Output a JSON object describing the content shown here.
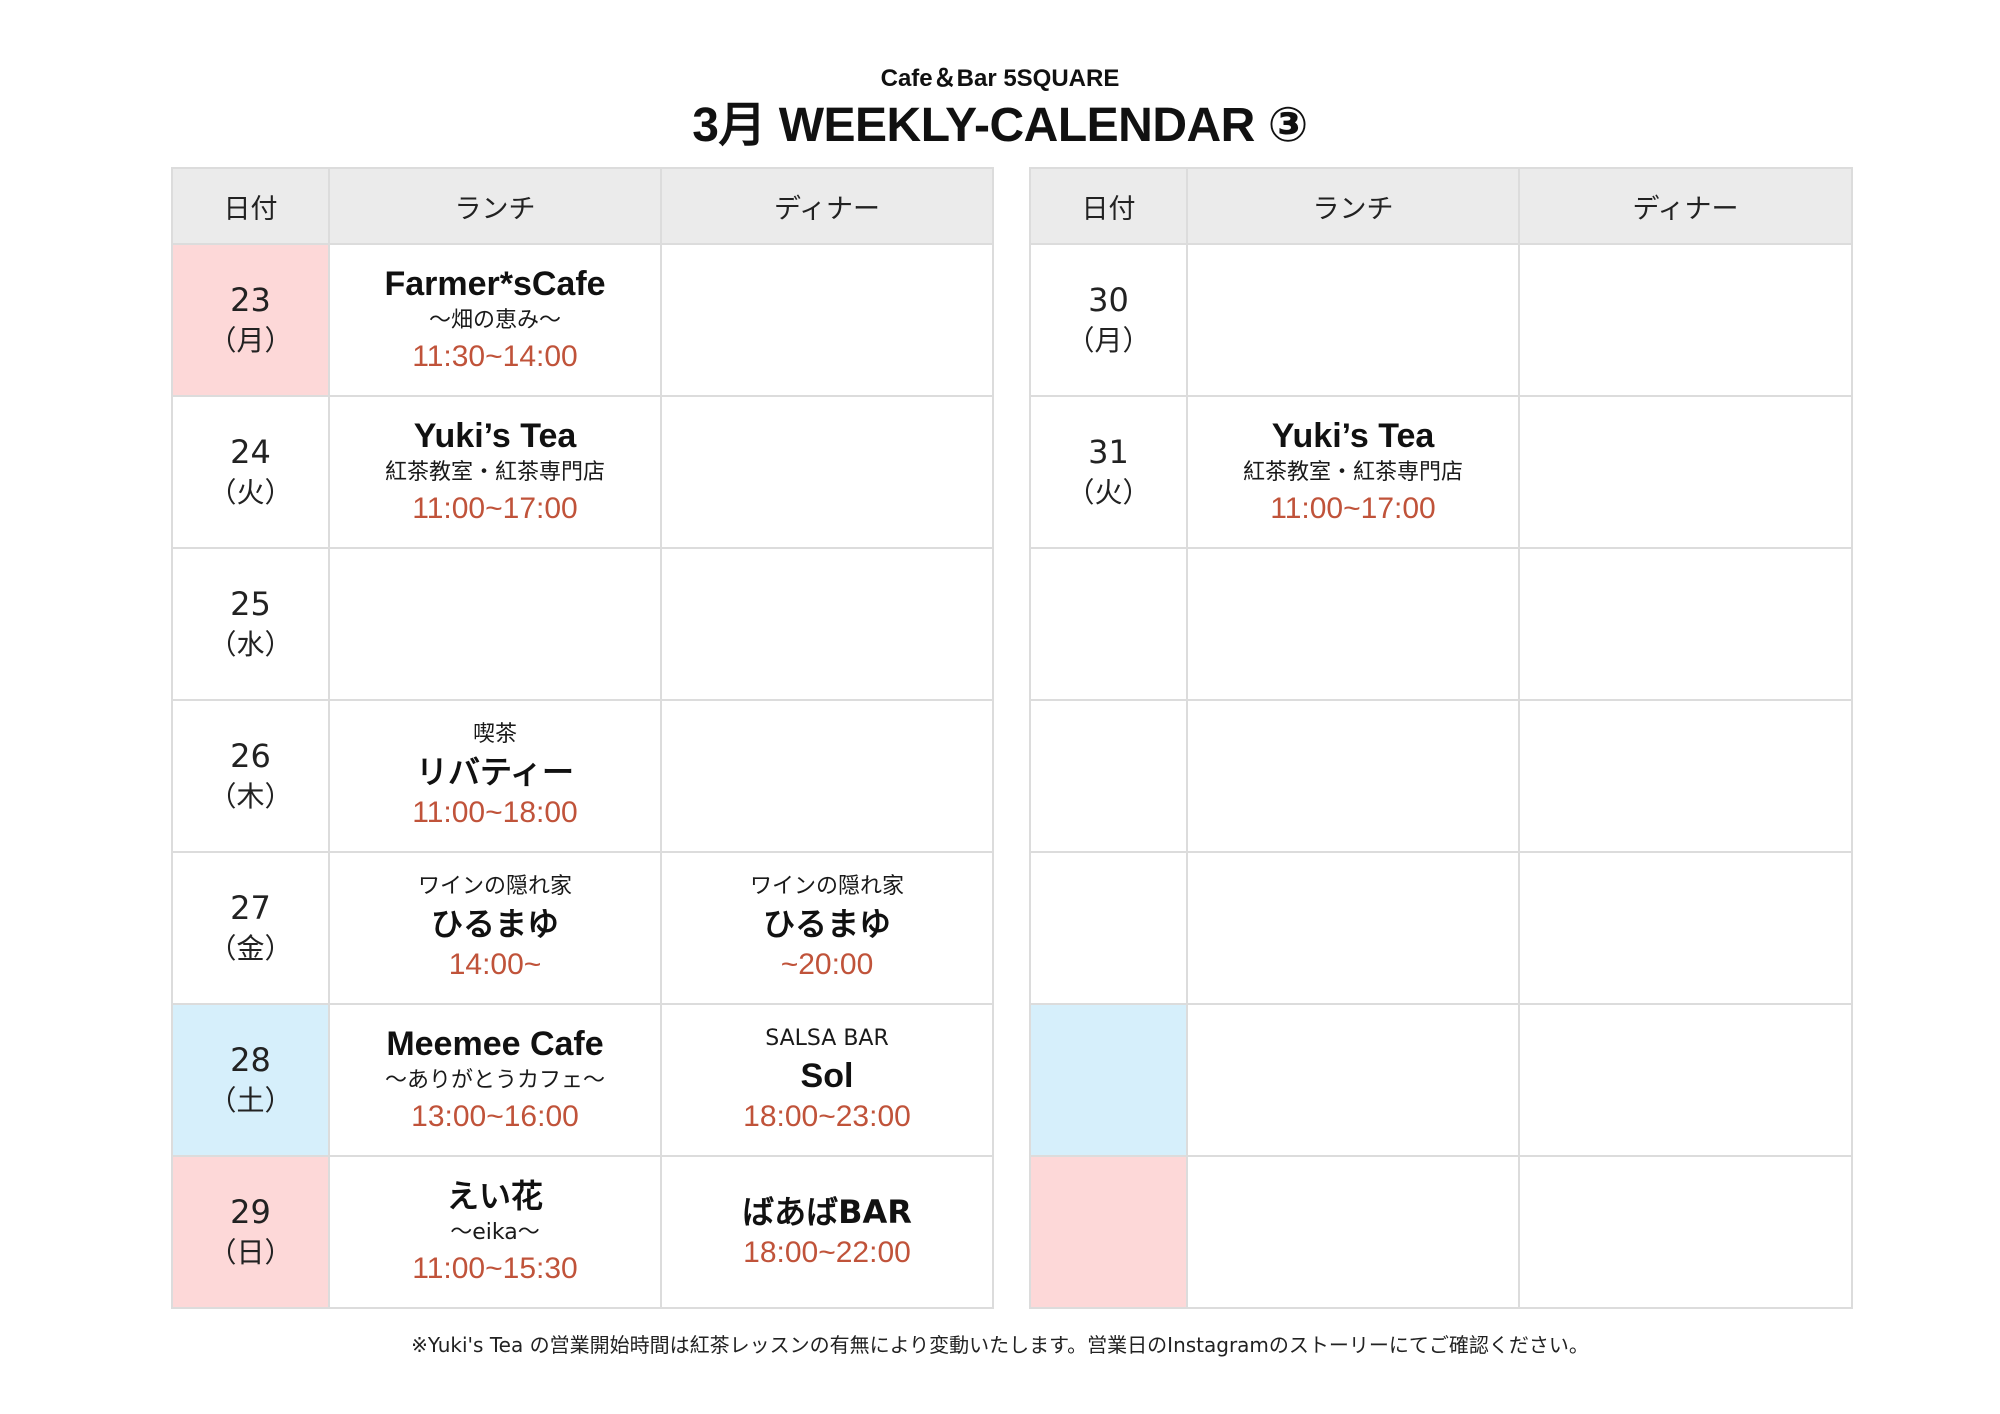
{
  "header": {
    "subtitle": "Cafe＆Bar 5SQUARE",
    "title": "3月 WEEKLY-CALENDAR ③"
  },
  "columns": {
    "date": "日付",
    "lunch": "ランチ",
    "dinner": "ディナー"
  },
  "colors": {
    "holiday_bg": "#fdd8d8",
    "saturday_bg": "#d6effb",
    "header_bg": "#ebebeb",
    "time_text": "#c0533a"
  },
  "left_table": {
    "rows": [
      {
        "day": "23",
        "weekday": "（月）",
        "highlight": "holiday",
        "lunch": {
          "top": "",
          "name": "Farmer*sCafe",
          "sub": "〜畑の恵み〜",
          "time": "11:30~14:00"
        },
        "dinner": null
      },
      {
        "day": "24",
        "weekday": "（火）",
        "highlight": "",
        "lunch": {
          "top": "",
          "name": "Yuki’s Tea",
          "sub": "紅茶教室・紅茶専門店",
          "time": "11:00~17:00"
        },
        "dinner": null
      },
      {
        "day": "25",
        "weekday": "（水）",
        "highlight": "",
        "lunch": null,
        "dinner": null
      },
      {
        "day": "26",
        "weekday": "（木）",
        "highlight": "",
        "lunch": {
          "top": "喫茶",
          "name": "リバティー",
          "sub": "",
          "time": "11:00~18:00"
        },
        "dinner": null
      },
      {
        "day": "27",
        "weekday": "（金）",
        "highlight": "",
        "lunch": {
          "top": "ワインの隠れ家",
          "name": "ひるまゆ",
          "sub": "",
          "time": "14:00~"
        },
        "dinner": {
          "top": "ワインの隠れ家",
          "name": "ひるまゆ",
          "sub": "",
          "time": "~20:00"
        }
      },
      {
        "day": "28",
        "weekday": "（土）",
        "highlight": "saturday",
        "lunch": {
          "top": "",
          "name": "Meemee Cafe",
          "sub": "〜ありがとうカフェ〜",
          "time": "13:00~16:00"
        },
        "dinner": {
          "top": "SALSA BAR",
          "name": "Sol",
          "sub": "",
          "time": "18:00~23:00"
        }
      },
      {
        "day": "29",
        "weekday": "（日）",
        "highlight": "holiday",
        "lunch": {
          "top": "",
          "name": "えい花",
          "sub": "〜eika〜",
          "time": "11:00~15:30"
        },
        "dinner": {
          "top": "",
          "name": "ばあばBAR",
          "sub": "",
          "time": "18:00~22:00"
        }
      }
    ]
  },
  "right_table": {
    "rows": [
      {
        "day": "30",
        "weekday": "（月）",
        "highlight": "",
        "lunch": null,
        "dinner": null
      },
      {
        "day": "31",
        "weekday": "（火）",
        "highlight": "",
        "lunch": {
          "top": "",
          "name": "Yuki’s Tea",
          "sub": "紅茶教室・紅茶専門店",
          "time": "11:00~17:00"
        },
        "dinner": null
      },
      {
        "day": "",
        "weekday": "",
        "highlight": "",
        "lunch": null,
        "dinner": null
      },
      {
        "day": "",
        "weekday": "",
        "highlight": "",
        "lunch": null,
        "dinner": null
      },
      {
        "day": "",
        "weekday": "",
        "highlight": "",
        "lunch": null,
        "dinner": null
      },
      {
        "day": "",
        "weekday": "",
        "highlight": "saturday",
        "lunch": null,
        "dinner": null
      },
      {
        "day": "",
        "weekday": "",
        "highlight": "holiday",
        "lunch": null,
        "dinner": null
      }
    ]
  },
  "footnote": "※Yuki's Tea の営業開始時間は紅茶レッスンの有無により変動いたします。営業日のInstagramのストーリーにてご確認ください。"
}
